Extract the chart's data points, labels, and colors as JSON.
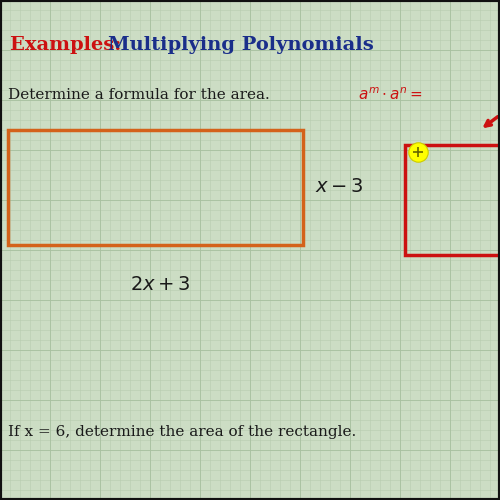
{
  "title_examples": "Examples:  ",
  "title_topic": "Multiplying Polynomials",
  "subtitle": "Determine a formula for the area.",
  "formula_hint": "$a^m \\cdot a^n =$",
  "label_right": "$x - 3$",
  "label_below": "$2x + 3$",
  "bottom_text": "If x = 6, determine the area of the rectangle.",
  "bg_color": "#ccddc4",
  "grid_minor_color": "#b8ccb0",
  "grid_major_color": "#a8c0a0",
  "rect_color": "#d4621a",
  "rect2_color": "#cc1111",
  "title_red": "#cc1111",
  "title_blue": "#1a2e8a",
  "text_dark": "#1a1a1a",
  "formula_color": "#cc1111",
  "arrow_color": "#cc1111"
}
